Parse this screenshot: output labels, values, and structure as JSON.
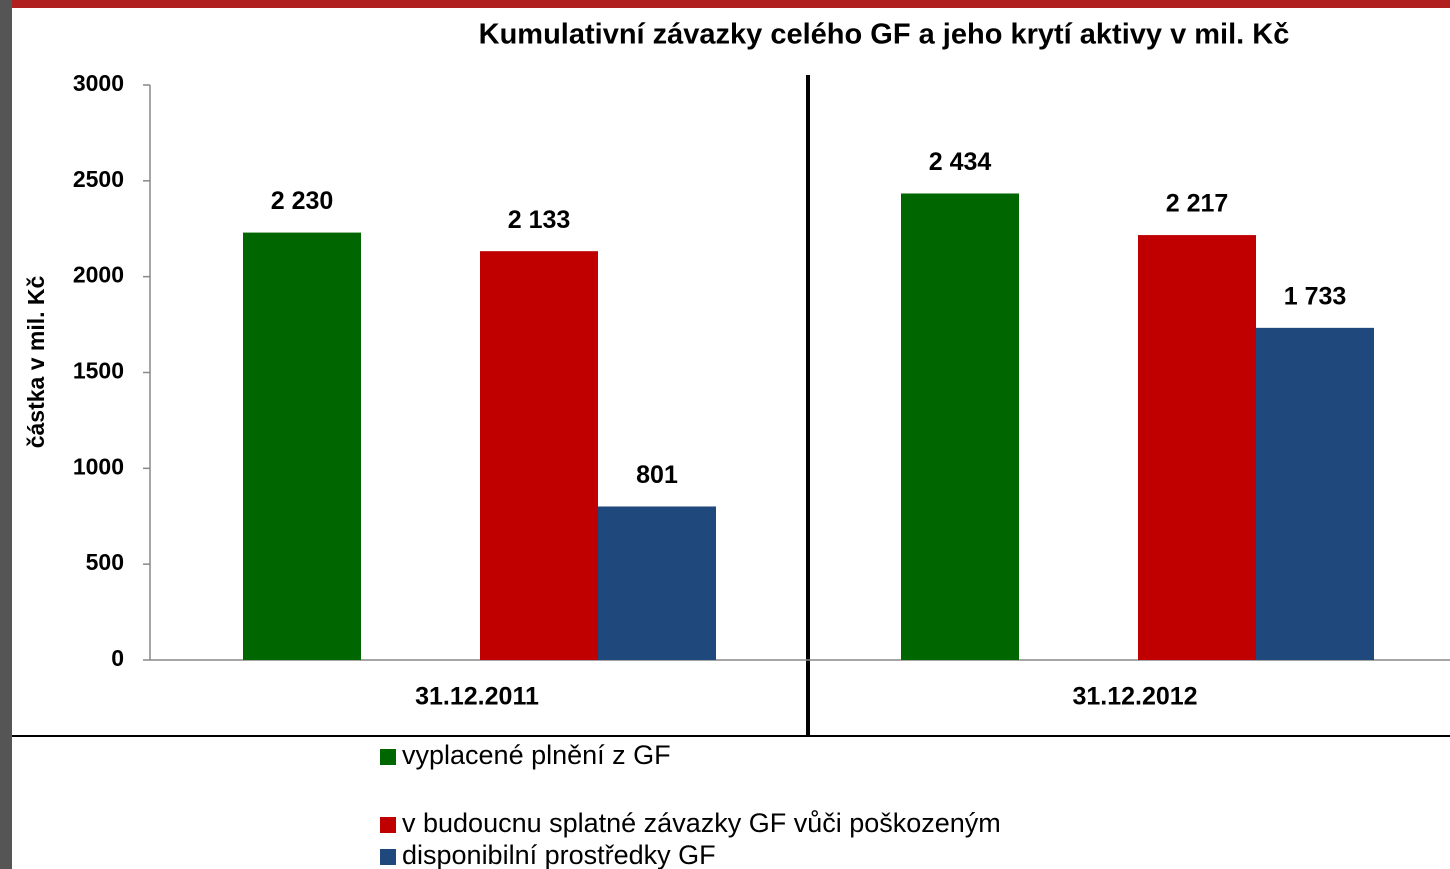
{
  "chart_data": {
    "type": "bar",
    "title": "Kumulativní závazky celého GF a jeho krytí aktivy v mil. Kč",
    "y_label": "částka v mil. Kč",
    "categories": [
      "31.12.2011",
      "31.12.2012"
    ],
    "series": [
      {
        "name": "vyplacené plnění z GF",
        "color": "#006600",
        "values": [
          2230,
          2434
        ],
        "value_labels": [
          "2 230",
          "2 434"
        ]
      },
      {
        "name": "v budoucnu splatné závazky GF vůči poškozeným",
        "color": "#c00000",
        "values": [
          2133,
          2217
        ],
        "value_labels": [
          "2 133",
          "2 217"
        ]
      },
      {
        "name": "disponibilní prostředky GF",
        "color": "#1f497d",
        "values": [
          801,
          1733
        ],
        "value_labels": [
          "801",
          "1 733"
        ]
      }
    ],
    "ylim": [
      0,
      3000
    ],
    "yticks": [
      0,
      500,
      1000,
      1500,
      2000,
      2500,
      3000
    ],
    "grid": false
  }
}
